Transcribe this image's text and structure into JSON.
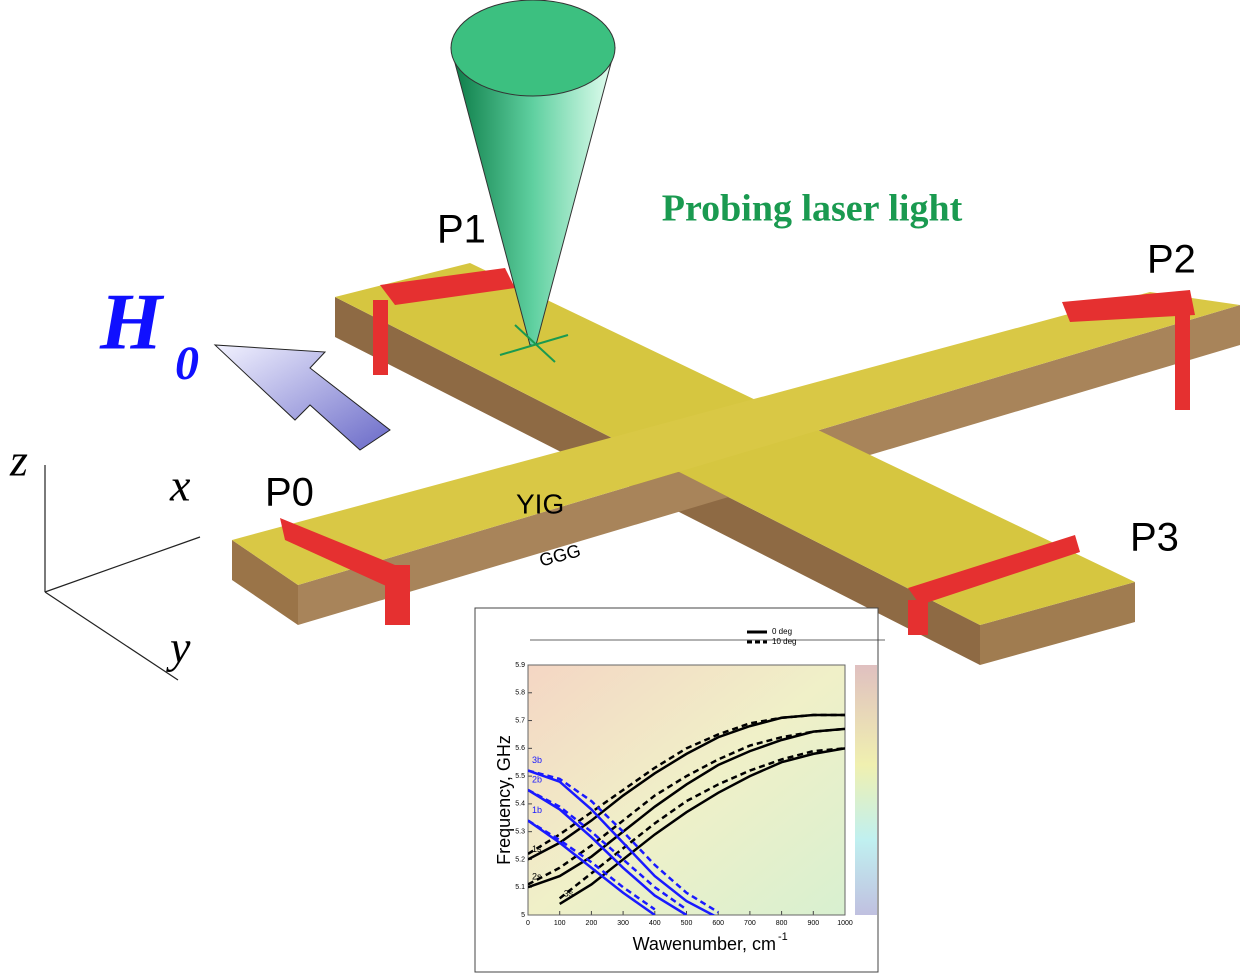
{
  "labels": {
    "laser": "Probing laser light",
    "field": "H",
    "field_sub": "0",
    "ports": [
      "P0",
      "P1",
      "P2",
      "P3"
    ],
    "film": "YIG",
    "substrate": "GGG",
    "axes": [
      "z",
      "x",
      "y"
    ]
  },
  "inset": {
    "type": "line",
    "xlabel": "Wawenumber, cm",
    "xlabel_sup": "-1",
    "ylabel": "Frequency, GHz",
    "legend": [
      "0 deg",
      "10 deg"
    ],
    "x": [
      0,
      100,
      200,
      300,
      400,
      500,
      600,
      700,
      800,
      900,
      1000
    ],
    "xlim": [
      0,
      1000
    ],
    "ylim": [
      5,
      5.9
    ],
    "xticks": [
      0,
      100,
      200,
      300,
      400,
      500,
      600,
      700,
      800,
      900,
      1000
    ],
    "yticks": [
      5,
      5.1,
      5.2,
      5.3,
      5.4,
      5.5,
      5.6,
      5.7,
      5.8,
      5.9
    ],
    "curves": [
      {
        "label": "1s",
        "color": "#000000",
        "values": [
          5.2,
          5.26,
          5.34,
          5.43,
          5.51,
          5.58,
          5.64,
          5.68,
          5.71,
          5.72,
          5.72
        ],
        "values_10deg": [
          5.22,
          5.29,
          5.37,
          5.45,
          5.53,
          5.6,
          5.65,
          5.69,
          5.71,
          5.72,
          5.72
        ]
      },
      {
        "label": "2s",
        "color": "#000000",
        "values": [
          5.1,
          5.14,
          5.21,
          5.3,
          5.39,
          5.47,
          5.54,
          5.59,
          5.63,
          5.66,
          5.67
        ],
        "values_10deg": [
          5.11,
          5.17,
          5.25,
          5.34,
          5.43,
          5.5,
          5.56,
          5.61,
          5.64,
          5.66,
          5.67
        ]
      },
      {
        "label": "3s",
        "color": "#000000",
        "values": [
          null,
          5.04,
          5.11,
          5.2,
          5.29,
          5.37,
          5.44,
          5.5,
          5.55,
          5.58,
          5.6
        ],
        "values_10deg": [
          null,
          5.06,
          5.15,
          5.24,
          5.33,
          5.41,
          5.47,
          5.52,
          5.56,
          5.59,
          5.6
        ]
      },
      {
        "label": "1b",
        "color": "#1a1aff",
        "values": [
          5.34,
          5.26,
          5.17,
          5.08,
          5.0,
          null,
          null,
          null,
          null,
          null,
          null
        ],
        "values_10deg": [
          5.34,
          5.27,
          5.19,
          5.1,
          5.02,
          null,
          null,
          null,
          null,
          null,
          null
        ]
      },
      {
        "label": "2b",
        "color": "#1a1aff",
        "values": [
          5.45,
          5.38,
          5.28,
          5.17,
          5.07,
          5.0,
          null,
          null,
          null,
          null,
          null
        ],
        "values_10deg": [
          5.45,
          5.39,
          5.3,
          5.2,
          5.1,
          5.02,
          null,
          null,
          null,
          null,
          null
        ]
      },
      {
        "label": "3b",
        "color": "#1a1aff",
        "values": [
          5.52,
          5.48,
          5.38,
          5.26,
          5.14,
          5.05,
          4.99,
          null,
          null,
          null,
          null
        ],
        "values_10deg": [
          5.52,
          5.49,
          5.41,
          5.3,
          5.18,
          5.08,
          5.01,
          null,
          null,
          null,
          null
        ]
      }
    ]
  }
}
